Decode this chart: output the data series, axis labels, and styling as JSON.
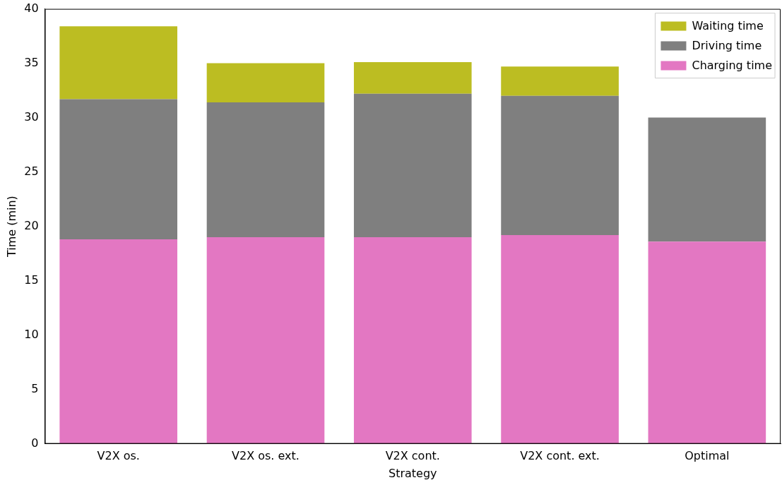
{
  "chart_data": {
    "type": "bar",
    "stacked": true,
    "xlabel": "Strategy",
    "ylabel": "Time (min)",
    "categories": [
      "V2X os.",
      "V2X os. ext.",
      "V2X cont.",
      "V2X cont. ext.",
      "Optimal"
    ],
    "series": [
      {
        "name": "Charging time",
        "color": "#e377c2",
        "values": [
          18.8,
          19.0,
          19.0,
          19.2,
          18.6
        ]
      },
      {
        "name": "Driving time",
        "color": "#7f7f7f",
        "values": [
          12.9,
          12.4,
          13.2,
          12.8,
          11.4
        ]
      },
      {
        "name": "Waiting time",
        "color": "#bcbd22",
        "values": [
          6.7,
          3.6,
          2.9,
          2.7,
          0
        ]
      }
    ],
    "ylim": [
      0,
      40
    ],
    "yticks": [
      0,
      5,
      10,
      15,
      20,
      25,
      30,
      35,
      40
    ],
    "grid": false,
    "legend": "top right"
  }
}
